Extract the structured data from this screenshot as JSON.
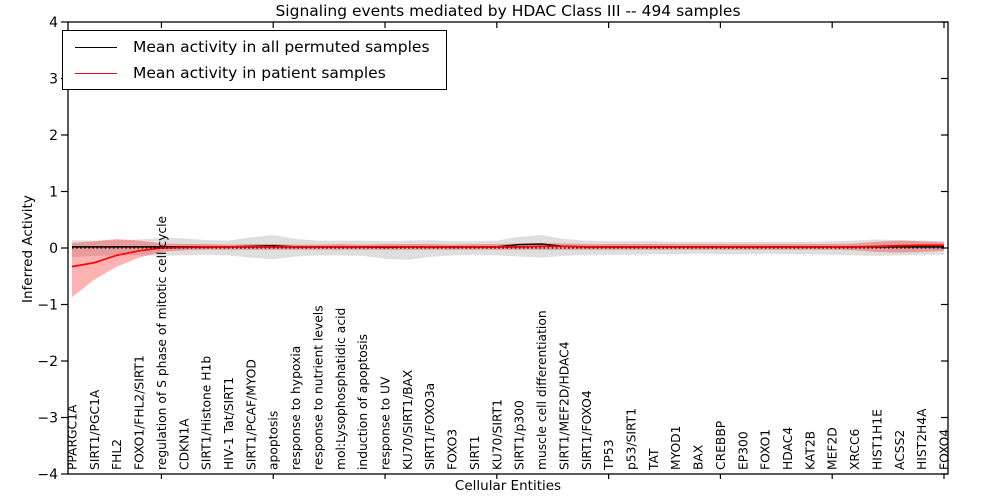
{
  "figure": {
    "background": "#ffffff",
    "axis_color": "#000000"
  },
  "chart_data": {
    "type": "line",
    "title": "Signaling events mediated by HDAC Class III -- 494 samples",
    "xlabel": "Cellular Entities",
    "ylabel": "Inferred Activity",
    "ylim": [
      -4,
      4
    ],
    "yticks": [
      -4,
      -3,
      -2,
      -1,
      0,
      1,
      2,
      3,
      4
    ],
    "grid": false,
    "legend_position": "upper left",
    "categories": [
      "PPARGC1A",
      "SIRT1/PGC1A",
      "FHL2",
      "FOXO1/FHL2/SIRT1",
      "regulation of S phase of mitotic cell cycle",
      "CDKN1A",
      "SIRT1/Histone H1b",
      "HIV-1 Tat/SIRT1",
      "SIRT1/PCAF/MYOD",
      "apoptosis",
      "response to hypoxia",
      "response to nutrient levels",
      "mol:Lysophosphatidic acid",
      "induction of apoptosis",
      "response to UV",
      "KU70/SIRT1/BAX",
      "SIRT1/FOXO3a",
      "FOXO3",
      "SIRT1",
      "KU70/SIRT1",
      "SIRT1/p300",
      "muscle cell differentiation",
      "SIRT1/MEF2D/HDAC4",
      "SIRT1/FOXO4",
      "TP53",
      "p53/SIRT1",
      "TAT",
      "MYOD1",
      "BAX",
      "CREBBP",
      "EP300",
      "FOXO1",
      "HDAC4",
      "KAT2B",
      "MEF2D",
      "XRCC6",
      "HIST1H1E",
      "ACSS2",
      "HIST2H4A",
      "FOXO4"
    ],
    "zero_line": {
      "y": 0,
      "style": "dotted",
      "color": "#000000"
    },
    "series": [
      {
        "name": "Mean activity in all permuted samples",
        "color": "#000000",
        "band_color": "rgba(0,0,0,0.13)",
        "values": [
          0.02,
          0.02,
          0.02,
          0.02,
          0.02,
          0.02,
          0.02,
          0.02,
          0.03,
          0.04,
          0.02,
          0.02,
          0.02,
          0.02,
          0.01,
          0.02,
          0.02,
          0.02,
          0.02,
          0.02,
          0.06,
          0.07,
          0.03,
          0.02,
          0.02,
          0.02,
          0.02,
          0.02,
          0.02,
          0.02,
          0.02,
          0.02,
          0.02,
          0.02,
          0.02,
          0.02,
          0.02,
          0.02,
          0.02,
          0.02
        ],
        "band_low": [
          -0.16,
          -0.14,
          -0.13,
          -0.13,
          -0.14,
          -0.13,
          -0.12,
          -0.13,
          -0.17,
          -0.2,
          -0.15,
          -0.13,
          -0.13,
          -0.14,
          -0.19,
          -0.21,
          -0.16,
          -0.13,
          -0.12,
          -0.13,
          -0.15,
          -0.17,
          -0.14,
          -0.12,
          -0.12,
          -0.12,
          -0.11,
          -0.11,
          -0.1,
          -0.11,
          -0.11,
          -0.1,
          -0.11,
          -0.11,
          -0.12,
          -0.13,
          -0.14,
          -0.13,
          -0.12,
          -0.12
        ],
        "band_high": [
          0.14,
          0.13,
          0.14,
          0.15,
          0.18,
          0.17,
          0.14,
          0.13,
          0.19,
          0.23,
          0.16,
          0.13,
          0.13,
          0.13,
          0.12,
          0.13,
          0.14,
          0.12,
          0.12,
          0.13,
          0.2,
          0.23,
          0.16,
          0.13,
          0.12,
          0.12,
          0.12,
          0.11,
          0.11,
          0.11,
          0.11,
          0.11,
          0.11,
          0.11,
          0.12,
          0.13,
          0.15,
          0.14,
          0.13,
          0.12
        ]
      },
      {
        "name": "Mean activity in patient samples",
        "color": "#ff0000",
        "band_color": "rgba(255,0,0,0.30)",
        "values": [
          -0.33,
          -0.26,
          -0.13,
          -0.05,
          0.0,
          0.01,
          0.02,
          0.02,
          0.02,
          0.02,
          0.02,
          0.02,
          0.02,
          0.02,
          0.02,
          0.02,
          0.02,
          0.02,
          0.02,
          0.02,
          0.02,
          0.03,
          0.03,
          0.02,
          0.02,
          0.02,
          0.02,
          0.02,
          0.02,
          0.02,
          0.02,
          0.02,
          0.02,
          0.02,
          0.02,
          0.02,
          0.03,
          0.04,
          0.05,
          0.05
        ],
        "band_low": [
          -0.87,
          -0.56,
          -0.33,
          -0.17,
          -0.07,
          -0.04,
          -0.03,
          -0.03,
          -0.03,
          -0.03,
          -0.03,
          -0.03,
          -0.03,
          -0.03,
          -0.03,
          -0.03,
          -0.03,
          -0.03,
          -0.03,
          -0.03,
          -0.03,
          -0.03,
          -0.03,
          -0.03,
          -0.03,
          -0.03,
          -0.03,
          -0.03,
          -0.03,
          -0.03,
          -0.03,
          -0.03,
          -0.03,
          -0.03,
          -0.03,
          -0.04,
          -0.07,
          -0.08,
          -0.07,
          -0.05
        ],
        "band_high": [
          0.09,
          0.12,
          0.16,
          0.13,
          0.08,
          0.07,
          0.07,
          0.06,
          0.07,
          0.07,
          0.06,
          0.06,
          0.07,
          0.06,
          0.07,
          0.07,
          0.07,
          0.06,
          0.07,
          0.07,
          0.08,
          0.09,
          0.08,
          0.07,
          0.07,
          0.07,
          0.07,
          0.07,
          0.07,
          0.07,
          0.07,
          0.07,
          0.07,
          0.07,
          0.07,
          0.08,
          0.11,
          0.13,
          0.12,
          0.1
        ]
      }
    ]
  }
}
